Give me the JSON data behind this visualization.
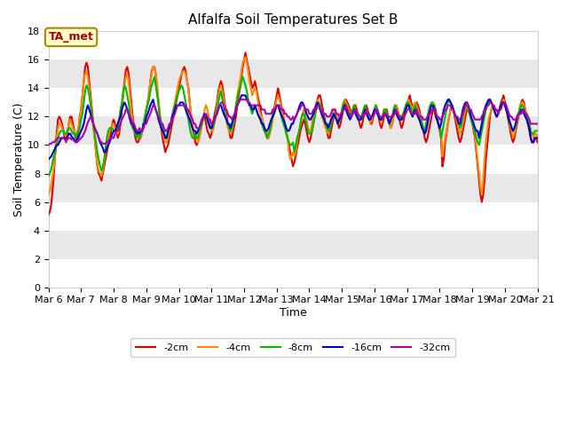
{
  "title": "Alfalfa Soil Temperatures Set B",
  "xlabel": "Time",
  "ylabel": "Soil Temperature (C)",
  "ylim": [
    0,
    18
  ],
  "yticks": [
    0,
    2,
    4,
    6,
    8,
    10,
    12,
    14,
    16,
    18
  ],
  "xlim": [
    0,
    360
  ],
  "fig_bg_color": "#ffffff",
  "plot_bg": "#ffffff",
  "band_color": "#e8e8e8",
  "annotation_text": "TA_met",
  "annotation_bg": "#ffffcc",
  "annotation_border": "#aa8800",
  "annotation_fg": "#aa0000",
  "legend_entries": [
    "-2cm",
    "-4cm",
    "-8cm",
    "-16cm",
    "-32cm"
  ],
  "line_colors": [
    "#dd0000",
    "#ff8800",
    "#00bb00",
    "#0000cc",
    "#aa00aa"
  ],
  "xtick_labels": [
    "Mar 6",
    "Mar 7",
    "Mar 8",
    "Mar 9",
    "Mar 10",
    "Mar 11",
    "Mar 12",
    "Mar 13",
    "Mar 14",
    "Mar 15",
    "Mar 16",
    "Mar 17",
    "Mar 18",
    "Mar 19",
    "Mar 20",
    "Mar 21"
  ],
  "xtick_positions": [
    0,
    24,
    48,
    72,
    96,
    120,
    144,
    168,
    192,
    216,
    240,
    264,
    288,
    312,
    336,
    360
  ],
  "title_fontsize": 11,
  "axis_fontsize": 8,
  "legend_fontsize": 8
}
